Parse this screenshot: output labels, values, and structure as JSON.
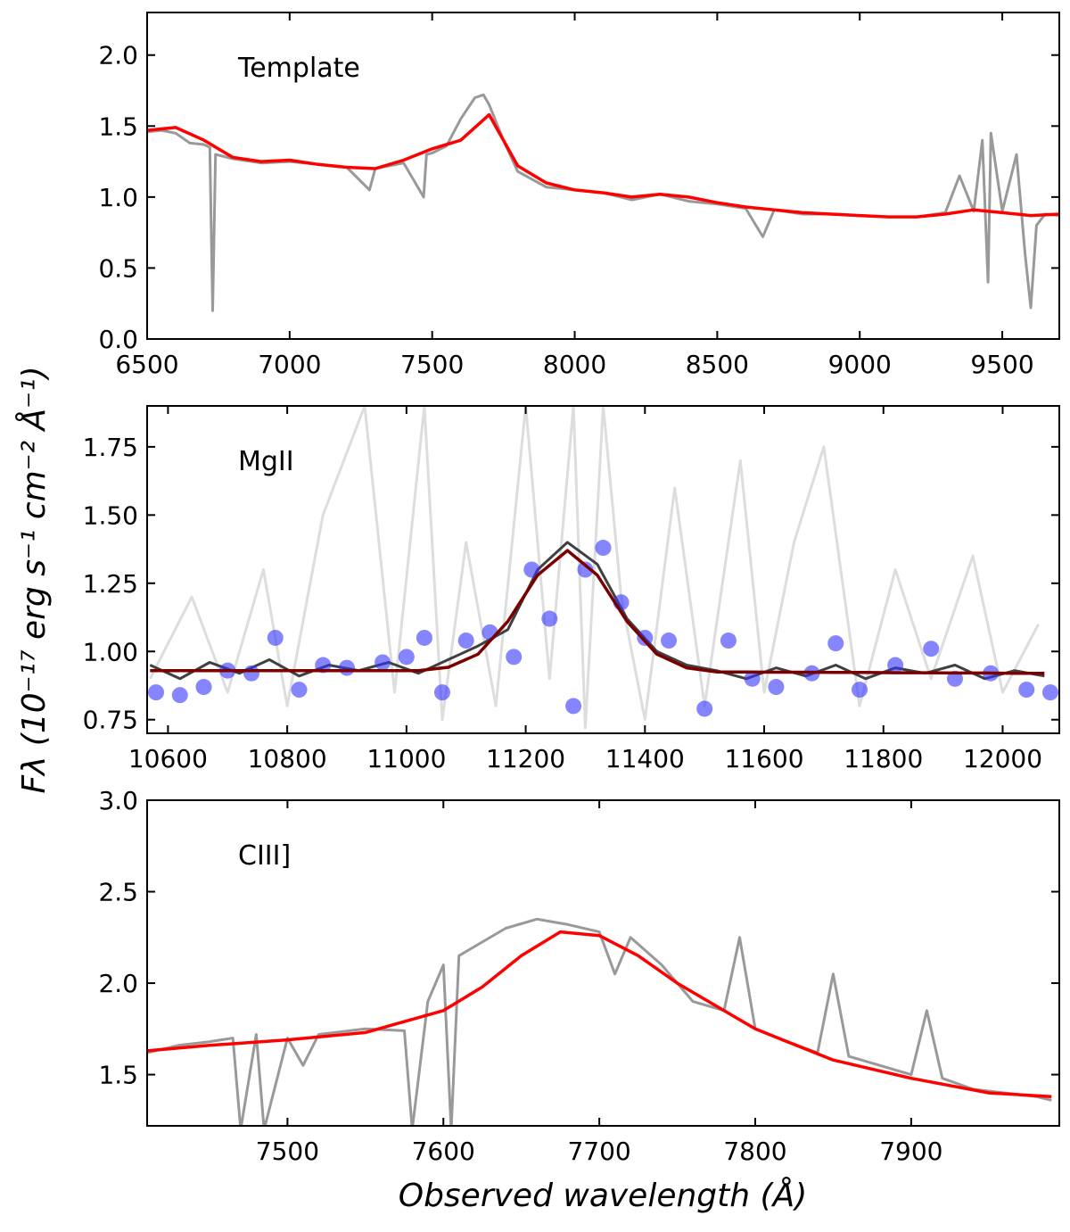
{
  "chart_data": [
    {
      "type": "line",
      "annotation": "Template",
      "xlim": [
        6500,
        9700
      ],
      "ylim": [
        0,
        2.3
      ],
      "xticks": [
        6500,
        7000,
        7500,
        8000,
        8500,
        9000,
        9500
      ],
      "yticks": [
        {
          "value": 0,
          "label": "0.0"
        },
        0.5,
        {
          "value": 1,
          "label": "1.0"
        },
        1.5,
        {
          "value": 2,
          "label": "2.0"
        }
      ],
      "series": [
        {
          "color": "#999999",
          "x": [
            6500,
            6550,
            6600,
            6650,
            6700,
            6720,
            6730,
            6740,
            6800,
            6900,
            7000,
            7100,
            7200,
            7280,
            7300,
            7400,
            7470,
            7480,
            7500,
            7550,
            7600,
            7650,
            7680,
            7700,
            7750,
            7800,
            7900,
            8000,
            8100,
            8200,
            8300,
            8400,
            8500,
            8600,
            8660,
            8700,
            8800,
            8900,
            9000,
            9100,
            9200,
            9300,
            9350,
            9400,
            9430,
            9450,
            9460,
            9500,
            9550,
            9580,
            9600,
            9620,
            9650,
            9700
          ],
          "values": [
            1.46,
            1.47,
            1.45,
            1.38,
            1.37,
            1.35,
            0.2,
            1.3,
            1.27,
            1.24,
            1.25,
            1.23,
            1.21,
            1.05,
            1.2,
            1.24,
            1.0,
            1.3,
            1.31,
            1.36,
            1.55,
            1.7,
            1.72,
            1.65,
            1.4,
            1.18,
            1.07,
            1.05,
            1.03,
            0.98,
            1.02,
            0.97,
            0.95,
            0.92,
            0.72,
            0.91,
            0.88,
            0.88,
            0.87,
            0.86,
            0.86,
            0.89,
            1.15,
            0.9,
            1.4,
            0.4,
            1.45,
            0.9,
            1.3,
            0.6,
            0.22,
            0.8,
            0.88,
            0.87
          ]
        },
        {
          "color": "#ff0000",
          "x": [
            6500,
            6600,
            6700,
            6800,
            6900,
            7000,
            7100,
            7200,
            7300,
            7400,
            7500,
            7600,
            7700,
            7800,
            7900,
            8000,
            8100,
            8200,
            8300,
            8400,
            8500,
            8600,
            8700,
            8800,
            8900,
            9000,
            9100,
            9200,
            9300,
            9400,
            9500,
            9600,
            9700
          ],
          "values": [
            1.47,
            1.49,
            1.4,
            1.28,
            1.25,
            1.26,
            1.23,
            1.21,
            1.2,
            1.26,
            1.34,
            1.4,
            1.58,
            1.22,
            1.1,
            1.05,
            1.03,
            1.0,
            1.02,
            1.0,
            0.96,
            0.93,
            0.91,
            0.89,
            0.88,
            0.87,
            0.86,
            0.86,
            0.88,
            0.91,
            0.89,
            0.87,
            0.88
          ]
        }
      ]
    },
    {
      "type": "line",
      "annotation": "MgII",
      "ylabel": "Fλ (10⁻¹⁷ erg s⁻¹ cm⁻² Å⁻¹)",
      "xlim": [
        10565,
        12095
      ],
      "ylim": [
        0.7,
        1.9
      ],
      "xticks": [
        10600,
        10800,
        11000,
        11200,
        11400,
        11600,
        11800,
        12000
      ],
      "yticks": [
        0.75,
        {
          "value": 1,
          "label": "1.00"
        },
        1.25,
        {
          "value": 1.5,
          "label": "1.50"
        },
        1.75
      ],
      "series": [
        {
          "color": "#dddddd",
          "x": [
            10570,
            10640,
            10700,
            10760,
            10800,
            10860,
            10930,
            10980,
            11030,
            11060,
            11100,
            11150,
            11200,
            11240,
            11280,
            11300,
            11330,
            11360,
            11400,
            11450,
            11500,
            11560,
            11600,
            11650,
            11700,
            11760,
            11820,
            11880,
            11950,
            12000,
            12060
          ],
          "values": [
            0.9,
            1.2,
            0.85,
            1.3,
            0.8,
            1.5,
            1.9,
            0.85,
            1.9,
            0.75,
            1.4,
            0.8,
            1.9,
            0.9,
            1.9,
            0.72,
            1.9,
            1.2,
            0.75,
            1.6,
            0.8,
            1.7,
            0.85,
            1.4,
            1.75,
            0.8,
            1.3,
            0.9,
            1.35,
            0.85,
            1.1
          ]
        },
        {
          "color": "#404040",
          "x": [
            10570,
            10620,
            10670,
            10720,
            10770,
            10820,
            10870,
            10920,
            10970,
            11020,
            11070,
            11120,
            11170,
            11220,
            11270,
            11320,
            11370,
            11420,
            11470,
            11520,
            11570,
            11620,
            11670,
            11720,
            11770,
            11820,
            11870,
            11920,
            11970,
            12020,
            12070
          ],
          "values": [
            0.95,
            0.9,
            0.96,
            0.92,
            0.97,
            0.91,
            0.95,
            0.93,
            0.96,
            0.92,
            0.97,
            1.02,
            1.08,
            1.3,
            1.4,
            1.32,
            1.12,
            1.0,
            0.95,
            0.93,
            0.9,
            0.94,
            0.91,
            0.95,
            0.9,
            0.94,
            0.92,
            0.95,
            0.9,
            0.93,
            0.91
          ]
        },
        {
          "type": "scatter",
          "color": "#3333ff",
          "x": [
            10580,
            10620,
            10660,
            10700,
            10740,
            10780,
            10820,
            10860,
            10900,
            10960,
            11000,
            11030,
            11060,
            11100,
            11140,
            11180,
            11210,
            11240,
            11280,
            11300,
            11330,
            11360,
            11400,
            11440,
            11500,
            11540,
            11580,
            11620,
            11680,
            11720,
            11760,
            11820,
            11880,
            11920,
            11980,
            12040,
            12080
          ],
          "values": [
            0.85,
            0.84,
            0.87,
            0.93,
            0.92,
            1.05,
            0.86,
            0.95,
            0.94,
            0.96,
            0.98,
            1.05,
            0.85,
            1.04,
            1.07,
            0.98,
            1.3,
            1.12,
            0.8,
            1.3,
            1.38,
            1.18,
            1.05,
            1.04,
            0.79,
            1.04,
            0.9,
            0.87,
            0.92,
            1.03,
            0.86,
            0.95,
            1.01,
            0.9,
            0.92,
            0.86,
            0.85
          ]
        },
        {
          "color": "#7a0000",
          "x": [
            10570,
            10620,
            10670,
            10720,
            10770,
            10820,
            10870,
            10920,
            10970,
            11020,
            11070,
            11120,
            11170,
            11220,
            11270,
            11320,
            11370,
            11420,
            11470,
            11520,
            11570,
            11620,
            11670,
            11720,
            11770,
            11820,
            11870,
            11920,
            11970,
            12020,
            12070
          ],
          "values": [
            0.93,
            0.93,
            0.93,
            0.93,
            0.93,
            0.93,
            0.93,
            0.93,
            0.93,
            0.93,
            0.942,
            0.99,
            1.11,
            1.28,
            1.37,
            1.28,
            1.11,
            0.99,
            0.94,
            0.925,
            0.925,
            0.924,
            0.924,
            0.923,
            0.923,
            0.922,
            0.922,
            0.921,
            0.921,
            0.92,
            0.92
          ]
        }
      ]
    },
    {
      "type": "line",
      "annotation": "CIII]",
      "xlabel": "Observed wavelength (Å)",
      "xlim": [
        7410,
        7995
      ],
      "ylim": [
        1.22,
        3.0
      ],
      "xticks": [
        7500,
        7600,
        7700,
        7800,
        7900
      ],
      "yticks": [
        1.5,
        {
          "value": 2,
          "label": "2.0"
        },
        2.5,
        {
          "value": 3,
          "label": "3.0"
        }
      ],
      "series": [
        {
          "color": "#999999",
          "x": [
            7410,
            7430,
            7450,
            7465,
            7470,
            7480,
            7485,
            7500,
            7510,
            7520,
            7550,
            7575,
            7580,
            7590,
            7600,
            7605,
            7610,
            7620,
            7640,
            7660,
            7680,
            7700,
            7710,
            7720,
            7740,
            7760,
            7780,
            7790,
            7800,
            7820,
            7840,
            7850,
            7860,
            7880,
            7900,
            7910,
            7920,
            7940,
            7960,
            7980,
            7990
          ],
          "values": [
            1.62,
            1.66,
            1.68,
            1.7,
            1.2,
            1.72,
            1.2,
            1.7,
            1.55,
            1.72,
            1.75,
            1.74,
            1.2,
            1.9,
            2.1,
            1.2,
            2.15,
            2.2,
            2.3,
            2.35,
            2.32,
            2.28,
            2.05,
            2.25,
            2.1,
            1.9,
            1.85,
            2.25,
            1.75,
            1.68,
            1.62,
            2.05,
            1.6,
            1.55,
            1.5,
            1.85,
            1.48,
            1.42,
            1.4,
            1.38,
            1.36
          ]
        },
        {
          "color": "#ff0000",
          "x": [
            7410,
            7450,
            7500,
            7550,
            7600,
            7625,
            7650,
            7675,
            7700,
            7725,
            7750,
            7800,
            7850,
            7900,
            7950,
            7990
          ],
          "values": [
            1.63,
            1.66,
            1.69,
            1.73,
            1.85,
            1.98,
            2.15,
            2.28,
            2.26,
            2.15,
            2.0,
            1.75,
            1.58,
            1.48,
            1.4,
            1.38
          ]
        }
      ]
    }
  ]
}
